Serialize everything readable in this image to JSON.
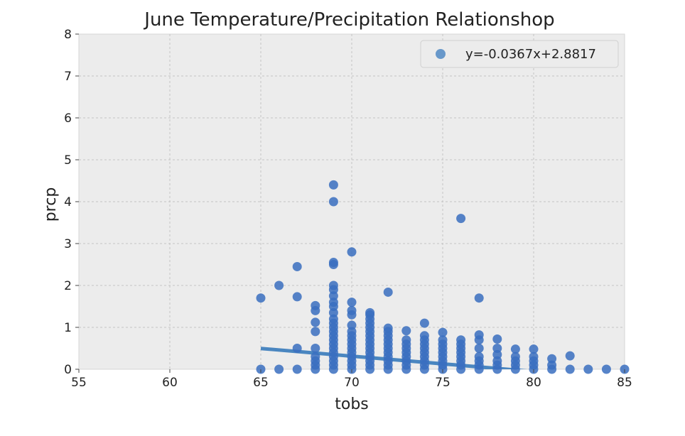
{
  "chart_data": {
    "type": "scatter",
    "title": "June Temperature/Precipitation Relationshop",
    "xlabel": "tobs",
    "ylabel": "prcp",
    "xlim": [
      55,
      85
    ],
    "ylim": [
      0,
      8
    ],
    "xticks": [
      55,
      60,
      65,
      70,
      75,
      80,
      85
    ],
    "yticks": [
      0,
      1,
      2,
      3,
      4,
      5,
      6,
      7,
      8
    ],
    "grid": true,
    "legend_position": "top-right",
    "colors": {
      "background": "#ececec",
      "grid": "#c4c4c4",
      "points": "#3a6fbf",
      "line": "#4a86c0"
    },
    "series": [
      {
        "name": "y=-0.0367x+2.8817",
        "points": [
          [
            65,
            0
          ],
          [
            65,
            1.7
          ],
          [
            66,
            0
          ],
          [
            66,
            2.0
          ],
          [
            67,
            0
          ],
          [
            67,
            0.5
          ],
          [
            67,
            1.73
          ],
          [
            67,
            2.45
          ],
          [
            68,
            0
          ],
          [
            68,
            0.1
          ],
          [
            68,
            0.2
          ],
          [
            68,
            0.3
          ],
          [
            68,
            0.5
          ],
          [
            68,
            0.9
          ],
          [
            68,
            1.12
          ],
          [
            68,
            1.4
          ],
          [
            68,
            1.52
          ],
          [
            69,
            0
          ],
          [
            69,
            0.1
          ],
          [
            69,
            0.2
          ],
          [
            69,
            0.3
          ],
          [
            69,
            0.4
          ],
          [
            69,
            0.5
          ],
          [
            69,
            0.6
          ],
          [
            69,
            0.7
          ],
          [
            69,
            0.8
          ],
          [
            69,
            0.9
          ],
          [
            69,
            1.0
          ],
          [
            69,
            1.1
          ],
          [
            69,
            1.2
          ],
          [
            69,
            1.35
          ],
          [
            69,
            1.5
          ],
          [
            69,
            1.6
          ],
          [
            69,
            1.75
          ],
          [
            69,
            1.9
          ],
          [
            69,
            2.0
          ],
          [
            69,
            2.5
          ],
          [
            69,
            2.55
          ],
          [
            69,
            4.0
          ],
          [
            69,
            4.4
          ],
          [
            70,
            0
          ],
          [
            70,
            0.1
          ],
          [
            70,
            0.2
          ],
          [
            70,
            0.3
          ],
          [
            70,
            0.4
          ],
          [
            70,
            0.5
          ],
          [
            70,
            0.6
          ],
          [
            70,
            0.7
          ],
          [
            70,
            0.8
          ],
          [
            70,
            0.9
          ],
          [
            70,
            1.05
          ],
          [
            70,
            1.3
          ],
          [
            70,
            1.4
          ],
          [
            70,
            1.6
          ],
          [
            70,
            2.8
          ],
          [
            71,
            0
          ],
          [
            71,
            0.1
          ],
          [
            71,
            0.2
          ],
          [
            71,
            0.3
          ],
          [
            71,
            0.4
          ],
          [
            71,
            0.5
          ],
          [
            71,
            0.6
          ],
          [
            71,
            0.7
          ],
          [
            71,
            0.8
          ],
          [
            71,
            0.9
          ],
          [
            71,
            1.0
          ],
          [
            71,
            1.1
          ],
          [
            71,
            1.2
          ],
          [
            71,
            1.3
          ],
          [
            71,
            1.35
          ],
          [
            72,
            0
          ],
          [
            72,
            0.1
          ],
          [
            72,
            0.2
          ],
          [
            72,
            0.3
          ],
          [
            72,
            0.4
          ],
          [
            72,
            0.5
          ],
          [
            72,
            0.6
          ],
          [
            72,
            0.7
          ],
          [
            72,
            0.8
          ],
          [
            72,
            0.9
          ],
          [
            72,
            0.98
          ],
          [
            72,
            1.84
          ],
          [
            73,
            0
          ],
          [
            73,
            0.1
          ],
          [
            73,
            0.2
          ],
          [
            73,
            0.3
          ],
          [
            73,
            0.4
          ],
          [
            73,
            0.5
          ],
          [
            73,
            0.6
          ],
          [
            73,
            0.7
          ],
          [
            73,
            0.92
          ],
          [
            74,
            0
          ],
          [
            74,
            0.1
          ],
          [
            74,
            0.2
          ],
          [
            74,
            0.3
          ],
          [
            74,
            0.4
          ],
          [
            74,
            0.5
          ],
          [
            74,
            0.6
          ],
          [
            74,
            0.7
          ],
          [
            74,
            0.8
          ],
          [
            74,
            1.1
          ],
          [
            75,
            0
          ],
          [
            75,
            0.1
          ],
          [
            75,
            0.2
          ],
          [
            75,
            0.3
          ],
          [
            75,
            0.4
          ],
          [
            75,
            0.5
          ],
          [
            75,
            0.6
          ],
          [
            75,
            0.7
          ],
          [
            75,
            0.88
          ],
          [
            76,
            0
          ],
          [
            76,
            0.1
          ],
          [
            76,
            0.2
          ],
          [
            76,
            0.3
          ],
          [
            76,
            0.4
          ],
          [
            76,
            0.5
          ],
          [
            76,
            0.6
          ],
          [
            76,
            0.7
          ],
          [
            76,
            3.6
          ],
          [
            77,
            0
          ],
          [
            77,
            0.1
          ],
          [
            77,
            0.2
          ],
          [
            77,
            0.3
          ],
          [
            77,
            0.5
          ],
          [
            77,
            0.7
          ],
          [
            77,
            0.82
          ],
          [
            77,
            1.7
          ],
          [
            78,
            0
          ],
          [
            78,
            0.1
          ],
          [
            78,
            0.2
          ],
          [
            78,
            0.35
          ],
          [
            78,
            0.5
          ],
          [
            78,
            0.72
          ],
          [
            79,
            0
          ],
          [
            79,
            0.1
          ],
          [
            79,
            0.2
          ],
          [
            79,
            0.3
          ],
          [
            79,
            0.48
          ],
          [
            80,
            0
          ],
          [
            80,
            0.1
          ],
          [
            80,
            0.2
          ],
          [
            80,
            0.3
          ],
          [
            80,
            0.48
          ],
          [
            81,
            0
          ],
          [
            81,
            0.1
          ],
          [
            81,
            0.25
          ],
          [
            82,
            0
          ],
          [
            82,
            0.32
          ],
          [
            83,
            0
          ],
          [
            84,
            0
          ],
          [
            85,
            0
          ]
        ]
      }
    ],
    "regression": {
      "slope": -0.0367,
      "intercept": 2.8817,
      "x_range": [
        65,
        85
      ]
    }
  }
}
